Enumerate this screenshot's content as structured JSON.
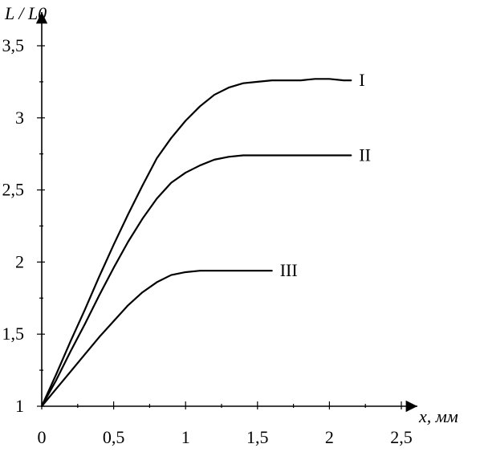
{
  "chart_data": {
    "type": "line",
    "title": "",
    "subtitle": "",
    "xlabel": "x, мм",
    "ylabel": "L / L0",
    "xlim": [
      0,
      2.5
    ],
    "ylim": [
      1,
      3.5
    ],
    "grid": false,
    "legend": "inline-right-end",
    "x_ticks": [
      0,
      0.5,
      1,
      1.5,
      2,
      2.5
    ],
    "x_tick_labels": [
      "0",
      "0,5",
      "1",
      "1,5",
      "2",
      "2,5"
    ],
    "y_ticks": [
      1,
      1.5,
      2,
      2.5,
      3,
      3.5
    ],
    "y_tick_labels": [
      "1",
      "1,5",
      "2",
      "2,5",
      "3",
      "3,5"
    ],
    "series": [
      {
        "name": "I",
        "x": [
          0,
          0.1,
          0.2,
          0.3,
          0.4,
          0.5,
          0.6,
          0.7,
          0.8,
          0.9,
          1.0,
          1.1,
          1.2,
          1.3,
          1.4,
          1.5,
          1.6,
          1.7,
          1.8,
          1.9,
          2.0,
          2.1,
          2.15
        ],
        "values": [
          1.0,
          1.22,
          1.45,
          1.67,
          1.9,
          2.12,
          2.33,
          2.53,
          2.72,
          2.86,
          2.98,
          3.08,
          3.16,
          3.21,
          3.24,
          3.25,
          3.26,
          3.26,
          3.26,
          3.27,
          3.27,
          3.26,
          3.26
        ]
      },
      {
        "name": "II",
        "x": [
          0,
          0.1,
          0.2,
          0.3,
          0.4,
          0.5,
          0.6,
          0.7,
          0.8,
          0.9,
          1.0,
          1.1,
          1.2,
          1.3,
          1.4,
          1.5,
          1.6,
          1.7,
          1.8,
          1.9,
          2.0,
          2.1,
          2.15
        ],
        "values": [
          1.0,
          1.18,
          1.38,
          1.57,
          1.77,
          1.96,
          2.14,
          2.3,
          2.44,
          2.55,
          2.62,
          2.67,
          2.71,
          2.73,
          2.74,
          2.74,
          2.74,
          2.74,
          2.74,
          2.74,
          2.74,
          2.74,
          2.74
        ]
      },
      {
        "name": "III",
        "x": [
          0,
          0.1,
          0.2,
          0.3,
          0.4,
          0.5,
          0.6,
          0.7,
          0.8,
          0.9,
          1.0,
          1.1,
          1.2,
          1.3,
          1.4,
          1.5,
          1.6
        ],
        "values": [
          1.0,
          1.12,
          1.24,
          1.36,
          1.48,
          1.59,
          1.7,
          1.79,
          1.86,
          1.91,
          1.93,
          1.94,
          1.94,
          1.94,
          1.94,
          1.94,
          1.94
        ]
      }
    ],
    "colors": {
      "axis": "#000000",
      "series": "#000000",
      "text": "#000000"
    }
  }
}
